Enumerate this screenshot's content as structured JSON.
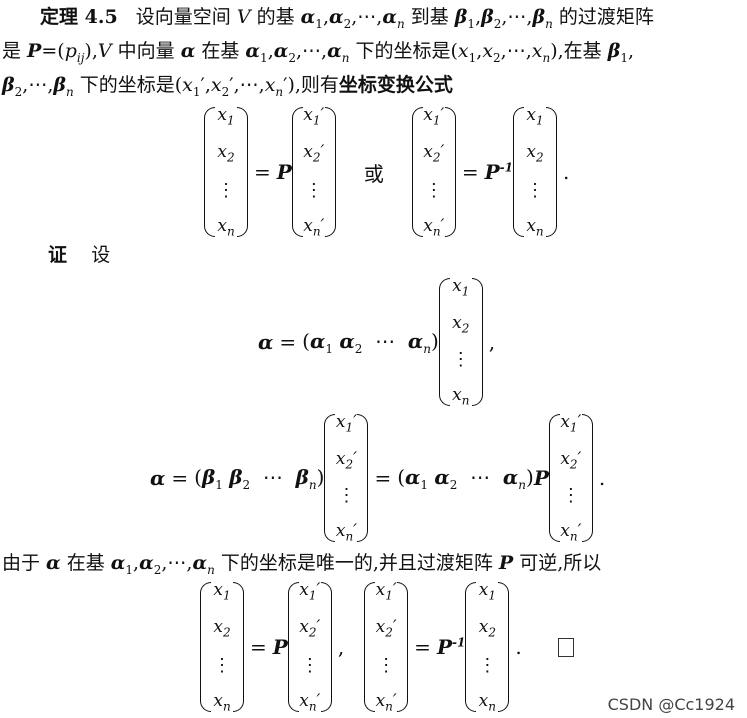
{
  "theorem": {
    "label": "定理 4.5",
    "line1": [
      "设向量空间 ",
      "V",
      " 的基 ",
      "α",
      "1",
      ",",
      "α",
      "2",
      ",⋯,",
      "α",
      "n",
      " 到基 ",
      "β",
      "1",
      ",",
      "β",
      "2",
      ",⋯,",
      "β",
      "n",
      " 的过渡矩阵"
    ],
    "line2_a": "是 ",
    "P": "P",
    "line2_b": "=(",
    "p": "p",
    "ij": "ij",
    "line2_c": "),",
    "V": "V",
    "line2_d": " 中向量 ",
    "alpha": "α",
    "line2_e": " 在基 ",
    "line2_f": " 下的坐标是(",
    "x": "x",
    "line2_g": "),在基 ",
    "line3_a": " 下的坐标是(",
    "line3_b": "),则有",
    "formula_name": "坐标变换公式"
  },
  "proof": {
    "label": "证",
    "set_word": "设",
    "conclusion_a": "由于 ",
    "conclusion_b": " 在基 ",
    "conclusion_c": " 下的坐标是唯一的,并且过渡矩阵 ",
    "conclusion_d": " 可逆,所以"
  },
  "math": {
    "or_word": "或",
    "equals": "=",
    "inv": "-1",
    "cdots": "⋯",
    "vdots": "⋮",
    "sub1": "1",
    "sub2": "2",
    "subn": "n",
    "prime": "′",
    "period": ".",
    "comma": ","
  },
  "watermark": "CSDN @Cc1924"
}
